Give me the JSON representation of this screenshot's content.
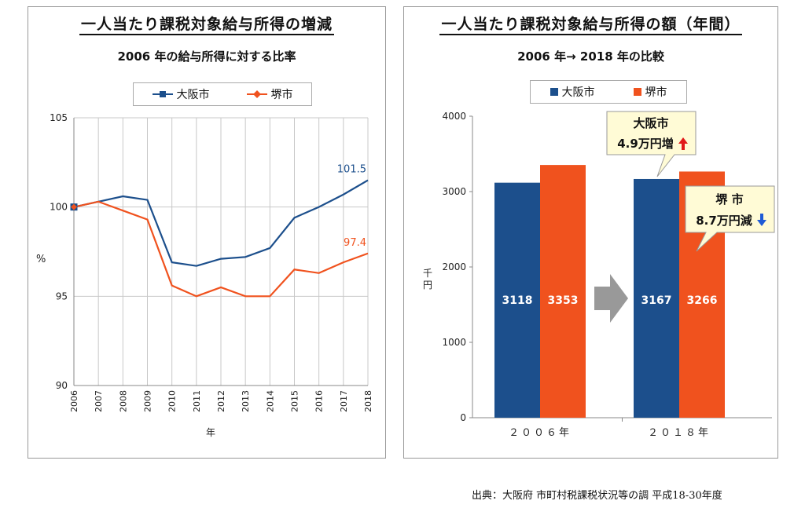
{
  "colors": {
    "osaka": "#1c4f8c",
    "sakai": "#f0521e",
    "arrow": "#999999",
    "grid": "#c8c8c8",
    "up": "#e11a1a",
    "down": "#1f5bd6"
  },
  "left_panel": {
    "title": "一人当たり課税対象給与所得の増減",
    "subtitle": "2006 年の給与所得に対する比率",
    "legend": [
      "大阪市",
      "堺市"
    ],
    "ylabel": "%",
    "xlabel": "年",
    "end_label_osaka": "101.5",
    "end_label_sakai": "97.4"
  },
  "right_panel": {
    "title": "一人当たり課税対象給与所得の額（年間）",
    "subtitle": "2006 年→ 2018 年の比較",
    "legend": [
      "大阪市",
      "堺市"
    ],
    "ylabel": "千円",
    "callout_osaka": {
      "name": "大阪市",
      "change": "4.9万円増"
    },
    "callout_sakai": {
      "name": "堺 市",
      "change": "8.7万円減"
    }
  },
  "chart_data": [
    {
      "type": "line",
      "title": "一人当たり課税対象給与所得の増減",
      "subtitle": "2006 年の給与所得に対する比率",
      "xlabel": "年",
      "ylabel": "%",
      "x": [
        "2006",
        "2007",
        "2008",
        "2009",
        "2010",
        "2011",
        "2012",
        "2013",
        "2014",
        "2015",
        "2016",
        "2017",
        "2018"
      ],
      "ylim": [
        90,
        105
      ],
      "yticks": [
        90,
        95,
        100,
        105
      ],
      "grid": true,
      "legend_position": "top",
      "series": [
        {
          "name": "大阪市",
          "values": [
            100,
            100.3,
            100.6,
            100.4,
            96.9,
            96.7,
            97.1,
            97.2,
            97.7,
            99.4,
            100.0,
            100.7,
            101.5
          ]
        },
        {
          "name": "堺市",
          "values": [
            100,
            100.3,
            99.8,
            99.3,
            95.6,
            95.0,
            95.5,
            95.0,
            95.0,
            96.5,
            96.3,
            96.9,
            97.4
          ]
        }
      ]
    },
    {
      "type": "bar",
      "title": "一人当たり課税対象給与所得の額（年間）",
      "subtitle": "2006 年→ 2018 年の比較",
      "ylabel": "千円",
      "categories": [
        "２００６年",
        "２０１８年"
      ],
      "ylim": [
        0,
        4000
      ],
      "yticks": [
        0,
        1000,
        2000,
        3000,
        4000
      ],
      "grid": false,
      "legend_position": "top",
      "series": [
        {
          "name": "大阪市",
          "values": [
            3118,
            3167
          ]
        },
        {
          "name": "堺市",
          "values": [
            3353,
            3266
          ]
        }
      ]
    }
  ],
  "source": "出典：大阪府 市町村税課税状況等の調 平成18-30年度"
}
